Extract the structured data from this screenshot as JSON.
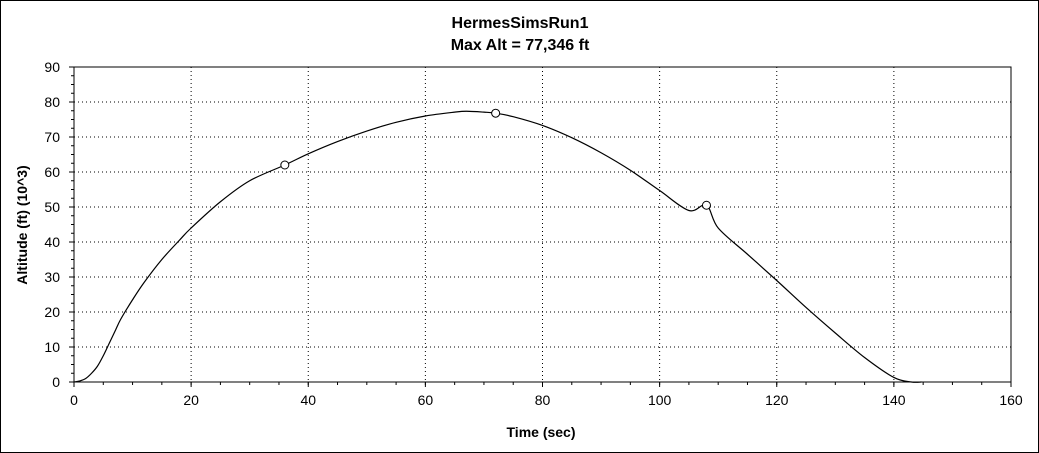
{
  "chart_data": {
    "type": "line",
    "title": "HermesSimsRun1",
    "subtitle": "Max Alt = 77,346 ft",
    "xlabel": "Time (sec)",
    "ylabel": "Altitude (ft) (10^3)",
    "xlim": [
      0,
      160
    ],
    "ylim": [
      0,
      90
    ],
    "xticks": [
      "0",
      "20",
      "40",
      "60",
      "80",
      "100",
      "120",
      "140",
      "160"
    ],
    "yticks": [
      "0",
      "10",
      "20",
      "30",
      "40",
      "50",
      "60",
      "70",
      "80",
      "90"
    ],
    "grid": true,
    "legend": "none",
    "line_color": "#000000",
    "series": [
      {
        "x": [
          0,
          1,
          2,
          3,
          4,
          5,
          6,
          7,
          8,
          10,
          12,
          15,
          18,
          20,
          25,
          30,
          36,
          40,
          45,
          50,
          55,
          60,
          65,
          67,
          70,
          72,
          75,
          80,
          85,
          90,
          95,
          100,
          105,
          108,
          110,
          115,
          120,
          125,
          130,
          135,
          140,
          143,
          144.7
        ],
        "y": [
          0,
          0.3,
          1,
          2.5,
          4.5,
          7.5,
          11,
          14.5,
          18,
          23.5,
          28.5,
          35,
          40.5,
          44,
          51.5,
          57.5,
          62,
          65.2,
          68.7,
          71.7,
          74.2,
          76,
          77.1,
          77.35,
          77.1,
          76.8,
          75.8,
          73.3,
          69.8,
          65.5,
          60.5,
          54.7,
          49,
          50.5,
          44,
          36.5,
          29,
          21.3,
          14,
          7,
          1.3,
          0,
          0
        ]
      }
    ],
    "markers": [
      {
        "x": 36,
        "y": 62
      },
      {
        "x": 72,
        "y": 76.8
      },
      {
        "x": 108,
        "y": 50.5
      }
    ]
  }
}
